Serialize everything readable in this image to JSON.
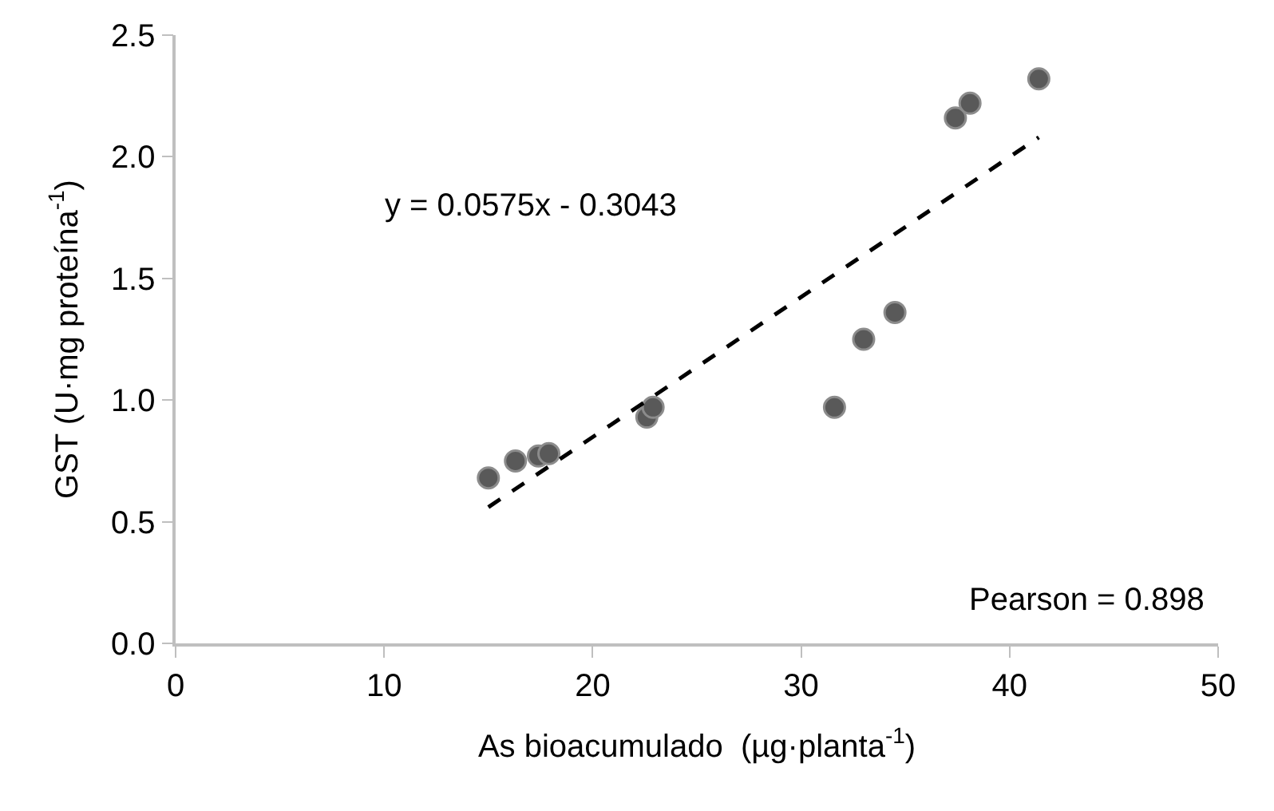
{
  "chart_data": {
    "type": "scatter",
    "xlabel": "As bioacumulado  (µg·planta$^{-1}$)",
    "ylabel": "GST (U·mg proteína$^{-1}$)",
    "xlim": [
      0,
      50
    ],
    "xticks": [
      0,
      10,
      20,
      30,
      40,
      50
    ],
    "ylim": [
      0,
      2.5
    ],
    "yticks": [
      {
        "value": 0,
        "label": "0.0"
      },
      {
        "value": 0.5,
        "label": "0.5"
      },
      {
        "value": 1,
        "label": "1.0"
      },
      {
        "value": 1.5,
        "label": "1.5"
      },
      {
        "value": 2,
        "label": "2.0"
      },
      {
        "value": 2.5,
        "label": "2.5"
      }
    ],
    "series": [
      {
        "marker": "circle",
        "color": "#595959",
        "x": [
          15.0,
          16.3,
          17.4,
          17.9,
          22.6,
          22.9,
          31.6,
          33.0,
          34.5,
          37.4,
          38.1,
          41.4
        ],
        "values": [
          0.68,
          0.75,
          0.77,
          0.78,
          0.93,
          0.97,
          0.97,
          1.25,
          1.36,
          2.16,
          2.22,
          2.32
        ]
      },
      {
        "type": "line",
        "color": "#000000",
        "line_style": "dashed",
        "x": [
          15.0,
          41.4
        ],
        "values": [
          0.56,
          2.08
        ]
      }
    ],
    "annotations": [
      "y = 0.0575x - 0.3043",
      "Pearson = 0.898"
    ]
  }
}
